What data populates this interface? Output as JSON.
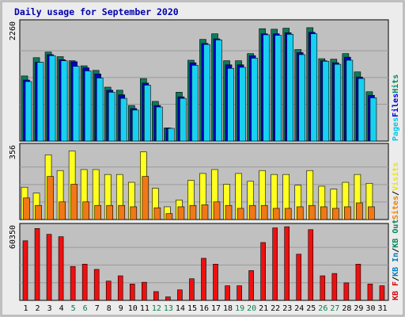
{
  "chart_data": {
    "type": "bar",
    "title": "Daily usage for September 2020",
    "categories": [
      "1",
      "2",
      "3",
      "4",
      "5",
      "6",
      "7",
      "8",
      "9",
      "10",
      "11",
      "12",
      "13",
      "14",
      "15",
      "16",
      "17",
      "18",
      "19",
      "20",
      "21",
      "22",
      "23",
      "24",
      "25",
      "26",
      "27",
      "28",
      "29",
      "30",
      "31"
    ],
    "weekend_days": [
      "5",
      "6",
      "12",
      "13",
      "19",
      "20",
      "26",
      "27"
    ],
    "panels": [
      {
        "name": "hits-files-pages",
        "ymax_label": "2260",
        "ymax": 2260,
        "right_labels": [
          {
            "text": "Pages",
            "color": "#00c8e8"
          },
          {
            "text": "Files",
            "color": "#0000e0"
          },
          {
            "text": "Hits",
            "color": "#008a5a"
          }
        ],
        "series": [
          {
            "name": "Hits",
            "color": "#0e7a5c",
            "values": [
              1280,
              1640,
              1750,
              1660,
              1580,
              1480,
              1390,
              1060,
              1000,
              700,
              1230,
              780,
              260,
              960,
              1590,
              2000,
              2110,
              1580,
              1580,
              1720,
              2210,
              2200,
              2220,
              1800,
              2230,
              1620,
              1610,
              1720,
              1360,
              970,
              null
            ]
          },
          {
            "name": "Files",
            "color": "#0000c8",
            "values": [
              1200,
              1550,
              1700,
              1600,
              1560,
              1440,
              1320,
              1000,
              910,
              640,
              1140,
              700,
              250,
              870,
              1540,
              1920,
              2010,
              1500,
              1500,
              1680,
              2110,
              2110,
              2130,
              1740,
              2140,
              1580,
              1540,
              1650,
              1260,
              900,
              null
            ]
          },
          {
            "name": "Pages",
            "color": "#18d0f0",
            "values": [
              1170,
              1550,
              1680,
              1580,
              1470,
              1380,
              1240,
              960,
              840,
              610,
              1100,
              670,
              250,
              840,
              1490,
              1900,
              1990,
              1430,
              1450,
              1630,
              2090,
              2080,
              2100,
              1700,
              2110,
              1570,
              1510,
              1590,
              1230,
              850,
              null
            ]
          }
        ]
      },
      {
        "name": "visits-sites",
        "ymax_label": "356",
        "ymax": 356,
        "right_labels": [
          {
            "text": "Sites",
            "color": "#f08000"
          },
          {
            "text": "/",
            "color": "#000000"
          },
          {
            "text": "Visits",
            "color": "#e8e800"
          }
        ],
        "series": [
          {
            "name": "Visits",
            "color": "#ffff20",
            "values": [
              165,
              135,
              330,
              250,
              350,
              255,
              255,
              230,
              230,
              190,
              345,
              160,
              65,
              100,
              200,
              235,
              255,
              180,
              235,
              195,
              250,
              230,
              230,
              175,
              250,
              170,
              155,
              190,
              230,
              185,
              null
            ]
          },
          {
            "name": "Sites",
            "color": "#f07818",
            "values": [
              110,
              72,
              220,
              90,
              180,
              90,
              72,
              72,
              72,
              65,
              220,
              60,
              30,
              65,
              72,
              75,
              90,
              72,
              57,
              72,
              72,
              57,
              57,
              65,
              72,
              65,
              57,
              65,
              85,
              65,
              null
            ]
          }
        ]
      },
      {
        "name": "kbytes",
        "ymax_label": "60350",
        "ymax": 60350,
        "right_labels": [
          {
            "text": "KB F",
            "color": "#e00000"
          },
          {
            "text": "/",
            "color": "#000000"
          },
          {
            "text": "KB In",
            "color": "#0080c0"
          },
          {
            "text": "/",
            "color": "#000000"
          },
          {
            "text": "KB Out",
            "color": "#008a5a"
          }
        ],
        "series": [
          {
            "name": "KB F",
            "color": "#ee1010",
            "values": [
              51000,
              61500,
              56500,
              54500,
              29000,
              31000,
              26500,
              16500,
              21000,
              14000,
              15500,
              7500,
              3000,
              9000,
              18500,
              36000,
              31000,
              12500,
              12500,
              25500,
              49500,
              62000,
              63000,
              39500,
              60500,
              21000,
              23000,
              15000,
              31000,
              14000,
              12500
            ]
          }
        ]
      }
    ]
  }
}
